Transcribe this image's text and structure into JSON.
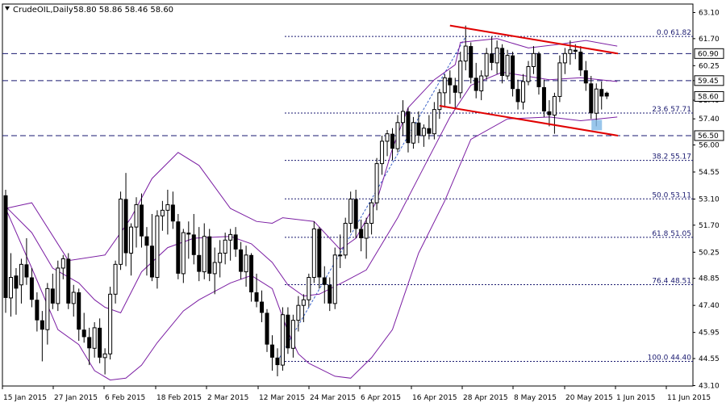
{
  "header": {
    "symbol_label": "CrudeOIL,Daily",
    "ohlc_label": "58.80 58.86 58.46 58.60"
  },
  "chart_data": {
    "type": "candlestick",
    "symbol": "CrudeOIL",
    "timeframe": "Daily",
    "ohlc_last": {
      "open": 58.8,
      "high": 58.86,
      "low": 58.46,
      "close": 58.6
    },
    "ylim": [
      43.1,
      63.1
    ],
    "y_ticks": [
      "63.10",
      "61.70",
      "60.25",
      "59.45",
      "58.40",
      "57.40",
      "56.00",
      "54.55",
      "53.10",
      "51.70",
      "50.25",
      "48.85",
      "47.40",
      "45.95",
      "44.55",
      "43.10"
    ],
    "x_ticks": [
      "15 Jan 2015",
      "27 Jan 2015",
      "6 Feb 2015",
      "18 Feb 2015",
      "2 Mar 2015",
      "12 Mar 2015",
      "24 Mar 2015",
      "6 Apr 2015",
      "16 Apr 2015",
      "28 Apr 2015",
      "8 May 2015",
      "20 May 2015",
      "1 Jun 2015",
      "11 Jun 2015"
    ],
    "horizontal_levels": [
      {
        "label": "60.90",
        "value": 60.9,
        "style": "dashed"
      },
      {
        "label": "59.45",
        "value": 59.45,
        "style": "dashed"
      },
      {
        "label": "56.50",
        "value": 56.5,
        "style": "dashed"
      }
    ],
    "fibonacci": [
      {
        "label": "0.0 61.82",
        "value": 61.82
      },
      {
        "label": "23.6 57.71",
        "value": 57.71
      },
      {
        "label": "38.2 55.17",
        "value": 55.17
      },
      {
        "label": "50.0 53.11",
        "value": 53.11
      },
      {
        "label": "61.8 51.05",
        "value": 51.05
      },
      {
        "label": "76.4 48.51",
        "value": 48.51
      },
      {
        "label": "100.0 44.40",
        "value": 44.4
      }
    ],
    "right_axis_badges": [
      {
        "label": "60.90",
        "value": 60.9
      },
      {
        "label": "59.45",
        "value": 59.45
      },
      {
        "label": "58.60",
        "value": 58.6
      },
      {
        "label": "56.50",
        "value": 56.5
      }
    ],
    "channel": {
      "upper": {
        "from": [
          "2015-05-01",
          62.4
        ],
        "to": [
          "2015-06-15",
          60.9
        ]
      },
      "lower": {
        "from": [
          "2015-04-29",
          58.1
        ],
        "to": [
          "2015-06-15",
          56.5
        ]
      }
    },
    "fib_swing": {
      "from": [
        "2015-03-17",
        44.4
      ],
      "to": [
        "2015-05-06",
        61.8
      ]
    },
    "candles": [
      [
        "2015-01-02",
        53.3,
        53.6,
        47.0,
        47.8
      ],
      [
        "2015-01-05",
        47.8,
        50.2,
        46.8,
        48.9
      ],
      [
        "2015-01-06",
        49.0,
        49.4,
        46.9,
        48.3
      ],
      [
        "2015-01-07",
        48.5,
        49.9,
        47.5,
        49.6
      ],
      [
        "2015-01-08",
        49.6,
        51.0,
        48.5,
        48.9
      ],
      [
        "2015-01-09",
        48.9,
        49.4,
        47.3,
        47.7
      ],
      [
        "2015-01-12",
        47.7,
        48.1,
        46.0,
        46.6
      ],
      [
        "2015-01-13",
        46.6,
        47.1,
        44.4,
        46.1
      ],
      [
        "2015-01-14",
        46.1,
        48.6,
        45.3,
        48.3
      ],
      [
        "2015-01-15",
        48.3,
        49.1,
        47.2,
        47.5
      ],
      [
        "2015-01-16",
        47.5,
        49.8,
        47.1,
        49.4
      ],
      [
        "2015-01-19",
        49.4,
        50.1,
        48.8,
        49.9
      ],
      [
        "2015-01-20",
        49.9,
        50.2,
        47.2,
        47.5
      ],
      [
        "2015-01-21",
        47.5,
        48.5,
        46.8,
        48.1
      ],
      [
        "2015-01-22",
        48.1,
        48.3,
        45.5,
        46.1
      ],
      [
        "2015-01-23",
        46.1,
        47.0,
        45.4,
        45.7
      ],
      [
        "2015-01-26",
        45.7,
        46.2,
        44.2,
        45.1
      ],
      [
        "2015-01-27",
        45.1,
        46.5,
        44.6,
        46.2
      ],
      [
        "2015-01-28",
        46.2,
        46.7,
        44.3,
        44.6
      ],
      [
        "2015-01-29",
        44.6,
        45.1,
        43.7,
        44.8
      ],
      [
        "2015-01-30",
        44.8,
        48.4,
        44.5,
        48.0
      ],
      [
        "2015-02-02",
        48.0,
        49.8,
        47.5,
        49.6
      ],
      [
        "2015-02-03",
        49.6,
        53.5,
        49.3,
        53.1
      ],
      [
        "2015-02-04",
        53.1,
        54.5,
        49.5,
        50.2
      ],
      [
        "2015-02-05",
        50.2,
        51.8,
        49.0,
        51.6
      ],
      [
        "2015-02-06",
        51.6,
        53.2,
        50.5,
        52.8
      ],
      [
        "2015-02-09",
        52.8,
        53.4,
        50.5,
        51.1
      ],
      [
        "2015-02-10",
        51.1,
        51.6,
        49.0,
        50.6
      ],
      [
        "2015-02-11",
        50.6,
        52.3,
        48.7,
        48.9
      ],
      [
        "2015-02-12",
        48.9,
        52.5,
        48.3,
        52.2
      ],
      [
        "2015-02-13",
        52.2,
        53.0,
        51.4,
        52.5
      ],
      [
        "2015-02-16",
        52.5,
        53.6,
        51.2,
        52.8
      ],
      [
        "2015-02-17",
        52.8,
        53.5,
        51.5,
        51.9
      ],
      [
        "2015-02-18",
        51.9,
        52.3,
        48.8,
        49.1
      ],
      [
        "2015-02-19",
        49.1,
        51.5,
        48.6,
        51.3
      ],
      [
        "2015-02-20",
        51.3,
        51.9,
        49.9,
        51.2
      ],
      [
        "2015-02-23",
        51.2,
        52.3,
        49.6,
        50.1
      ],
      [
        "2015-02-24",
        50.1,
        51.6,
        48.7,
        49.2
      ],
      [
        "2015-02-25",
        49.2,
        51.8,
        48.8,
        51.1
      ],
      [
        "2015-02-26",
        51.1,
        51.5,
        48.7,
        49.1
      ],
      [
        "2015-02-27",
        49.1,
        50.5,
        48.0,
        49.7
      ],
      [
        "2015-03-02",
        49.7,
        50.9,
        48.9,
        50.2
      ],
      [
        "2015-03-03",
        50.2,
        51.3,
        49.6,
        50.9
      ],
      [
        "2015-03-04",
        50.9,
        51.5,
        49.8,
        51.2
      ],
      [
        "2015-03-05",
        51.2,
        51.6,
        50.0,
        50.4
      ],
      [
        "2015-03-06",
        50.4,
        50.8,
        48.8,
        49.2
      ],
      [
        "2015-03-09",
        49.2,
        50.6,
        48.4,
        50.1
      ],
      [
        "2015-03-10",
        50.1,
        50.2,
        47.6,
        48.1
      ],
      [
        "2015-03-11",
        48.1,
        49.1,
        47.3,
        47.6
      ],
      [
        "2015-03-12",
        47.6,
        48.2,
        46.5,
        47.0
      ],
      [
        "2015-03-13",
        47.0,
        47.2,
        44.9,
        45.3
      ],
      [
        "2015-03-16",
        45.3,
        45.8,
        43.9,
        44.6
      ],
      [
        "2015-03-17",
        44.6,
        45.1,
        43.6,
        44.2
      ],
      [
        "2015-03-18",
        44.2,
        47.3,
        43.9,
        46.9
      ],
      [
        "2015-03-19",
        46.9,
        47.3,
        44.8,
        45.1
      ],
      [
        "2015-03-20",
        45.1,
        46.9,
        44.6,
        46.6
      ],
      [
        "2015-03-23",
        46.6,
        47.9,
        46.0,
        47.4
      ],
      [
        "2015-03-24",
        47.4,
        48.0,
        46.5,
        47.7
      ],
      [
        "2015-03-25",
        47.7,
        49.1,
        47.3,
        48.9
      ],
      [
        "2015-03-26",
        48.9,
        51.9,
        48.6,
        51.5
      ],
      [
        "2015-03-27",
        51.5,
        51.6,
        48.3,
        48.9
      ],
      [
        "2015-03-30",
        48.9,
        49.5,
        47.5,
        48.5
      ],
      [
        "2015-03-31",
        48.5,
        48.9,
        47.1,
        47.5
      ],
      [
        "2015-04-01",
        47.5,
        50.5,
        47.2,
        50.1
      ],
      [
        "2015-04-02",
        50.1,
        51.2,
        49.4,
        50.1
      ],
      [
        "2015-04-03",
        50.1,
        52.1,
        49.9,
        51.8
      ],
      [
        "2015-04-06",
        51.8,
        53.5,
        51.3,
        53.1
      ],
      [
        "2015-04-07",
        53.1,
        53.6,
        51.0,
        51.5
      ],
      [
        "2015-04-08",
        51.5,
        52.0,
        50.3,
        51.0
      ],
      [
        "2015-04-09",
        51.0,
        52.1,
        49.9,
        51.8
      ],
      [
        "2015-04-10",
        51.8,
        53.1,
        51.2,
        52.9
      ],
      [
        "2015-04-13",
        52.9,
        55.3,
        52.5,
        55.0
      ],
      [
        "2015-04-14",
        55.0,
        56.5,
        54.4,
        56.2
      ],
      [
        "2015-04-15",
        56.2,
        56.8,
        55.4,
        56.6
      ],
      [
        "2015-04-16",
        56.6,
        56.9,
        55.2,
        55.8
      ],
      [
        "2015-04-17",
        55.8,
        57.6,
        55.6,
        57.2
      ],
      [
        "2015-04-20",
        57.2,
        58.4,
        56.5,
        57.8
      ],
      [
        "2015-04-21",
        57.8,
        58.0,
        55.6,
        56.1
      ],
      [
        "2015-04-22",
        56.1,
        57.5,
        55.8,
        57.2
      ],
      [
        "2015-04-23",
        57.2,
        57.8,
        56.1,
        56.5
      ],
      [
        "2015-04-24",
        56.5,
        57.1,
        55.9,
        56.9
      ],
      [
        "2015-04-27",
        56.9,
        57.6,
        56.3,
        56.6
      ],
      [
        "2015-04-28",
        56.6,
        58.3,
        56.3,
        57.9
      ],
      [
        "2015-04-29",
        57.9,
        59.0,
        57.4,
        58.8
      ],
      [
        "2015-04-30",
        58.8,
        59.8,
        58.0,
        59.6
      ],
      [
        "2015-05-01",
        59.6,
        60.0,
        58.2,
        59.2
      ],
      [
        "2015-05-04",
        59.2,
        59.6,
        57.9,
        58.8
      ],
      [
        "2015-05-05",
        58.8,
        61.0,
        58.5,
        60.5
      ],
      [
        "2015-05-06",
        60.5,
        62.4,
        60.0,
        61.3
      ],
      [
        "2015-05-07",
        61.3,
        61.5,
        59.3,
        59.6
      ],
      [
        "2015-05-08",
        59.6,
        60.4,
        58.5,
        58.9
      ],
      [
        "2015-05-11",
        58.9,
        60.0,
        58.4,
        59.7
      ],
      [
        "2015-05-12",
        59.7,
        61.2,
        59.5,
        60.9
      ],
      [
        "2015-05-13",
        60.9,
        61.8,
        60.0,
        60.4
      ],
      [
        "2015-05-14",
        60.4,
        61.6,
        59.8,
        61.2
      ],
      [
        "2015-05-15",
        61.2,
        61.4,
        59.3,
        59.7
      ],
      [
        "2015-05-18",
        59.7,
        61.1,
        59.5,
        60.8
      ],
      [
        "2015-05-19",
        60.8,
        61.0,
        58.6,
        59.0
      ],
      [
        "2015-05-20",
        59.0,
        59.5,
        57.9,
        58.3
      ],
      [
        "2015-05-21",
        58.3,
        59.8,
        57.9,
        59.4
      ],
      [
        "2015-05-22",
        59.4,
        60.5,
        59.2,
        60.2
      ],
      [
        "2015-05-25",
        60.2,
        61.3,
        59.8,
        60.9
      ],
      [
        "2015-05-26",
        60.9,
        61.0,
        58.7,
        59.1
      ],
      [
        "2015-05-27",
        59.1,
        59.5,
        57.5,
        57.8
      ],
      [
        "2015-05-28",
        57.8,
        58.4,
        57.0,
        57.6
      ],
      [
        "2015-05-29",
        57.6,
        58.8,
        56.6,
        58.6
      ],
      [
        "2015-06-01",
        58.6,
        60.8,
        58.3,
        60.4
      ],
      [
        "2015-06-02",
        60.4,
        61.2,
        59.8,
        60.9
      ],
      [
        "2015-06-03",
        60.9,
        61.6,
        60.3,
        61.1
      ],
      [
        "2015-06-04",
        61.1,
        61.4,
        60.6,
        61.0
      ],
      [
        "2015-06-05",
        61.0,
        61.3,
        59.7,
        60.0
      ],
      [
        "2015-06-08",
        60.0,
        60.5,
        58.9,
        59.3
      ],
      [
        "2015-06-09",
        59.3,
        59.7,
        57.4,
        57.7
      ],
      [
        "2015-06-10",
        57.7,
        59.3,
        57.0,
        59.0
      ],
      [
        "2015-06-11",
        59.0,
        59.4,
        57.9,
        58.6
      ],
      [
        "2015-06-12",
        58.8,
        58.86,
        58.46,
        58.6
      ]
    ],
    "bollinger_bands": {
      "upper": [
        [
          0,
          52.6
        ],
        [
          5,
          52.9
        ],
        [
          12,
          49.8
        ],
        [
          19,
          50.1
        ],
        [
          24,
          52.1
        ],
        [
          28,
          54.2
        ],
        [
          33,
          55.6
        ],
        [
          37,
          54.9
        ],
        [
          43,
          52.6
        ],
        [
          48,
          51.9
        ],
        [
          51,
          51.8
        ],
        [
          53,
          52.1
        ],
        [
          59,
          51.9
        ],
        [
          64,
          50.4
        ],
        [
          67,
          51.0
        ],
        [
          71,
          53.0
        ],
        [
          74,
          55.8
        ],
        [
          77,
          58.0
        ],
        [
          82,
          59.5
        ],
        [
          86,
          60.3
        ],
        [
          87,
          61.5
        ],
        [
          94,
          61.7
        ],
        [
          100,
          61.2
        ],
        [
          106,
          61.4
        ],
        [
          111,
          61.6
        ],
        [
          117,
          61.3
        ]
      ],
      "middle": [
        [
          0,
          52.7
        ],
        [
          5,
          51.3
        ],
        [
          9,
          49.4
        ],
        [
          14,
          48.6
        ],
        [
          17,
          47.7
        ],
        [
          19,
          47.3
        ],
        [
          22,
          47.0
        ],
        [
          26,
          49.2
        ],
        [
          31,
          50.5
        ],
        [
          36,
          51.0
        ],
        [
          43,
          51.1
        ],
        [
          47,
          50.7
        ],
        [
          51,
          49.7
        ],
        [
          54,
          48.5
        ],
        [
          57,
          47.9
        ],
        [
          60,
          48.0
        ],
        [
          65,
          48.7
        ],
        [
          69,
          49.3
        ],
        [
          75,
          52.1
        ],
        [
          80,
          54.8
        ],
        [
          85,
          57.5
        ],
        [
          89,
          59.2
        ],
        [
          95,
          59.9
        ],
        [
          104,
          59.5
        ],
        [
          110,
          59.6
        ],
        [
          117,
          59.4
        ]
      ],
      "lower": [
        [
          0,
          52.6
        ],
        [
          5,
          49.4
        ],
        [
          10,
          46.1
        ],
        [
          14,
          45.3
        ],
        [
          17,
          43.9
        ],
        [
          20,
          43.4
        ],
        [
          23,
          43.5
        ],
        [
          26,
          44.2
        ],
        [
          29,
          45.4
        ],
        [
          34,
          47.1
        ],
        [
          37,
          47.7
        ],
        [
          43,
          48.6
        ],
        [
          47,
          49.0
        ],
        [
          51,
          48.3
        ],
        [
          54,
          46.0
        ],
        [
          56,
          44.8
        ],
        [
          58,
          44.3
        ],
        [
          63,
          43.6
        ],
        [
          66,
          43.5
        ],
        [
          70,
          44.6
        ],
        [
          74,
          46.1
        ],
        [
          79,
          50.2
        ],
        [
          84,
          53.0
        ],
        [
          89,
          56.3
        ],
        [
          96,
          57.4
        ],
        [
          104,
          57.5
        ],
        [
          110,
          57.3
        ],
        [
          117,
          57.5
        ]
      ]
    }
  }
}
